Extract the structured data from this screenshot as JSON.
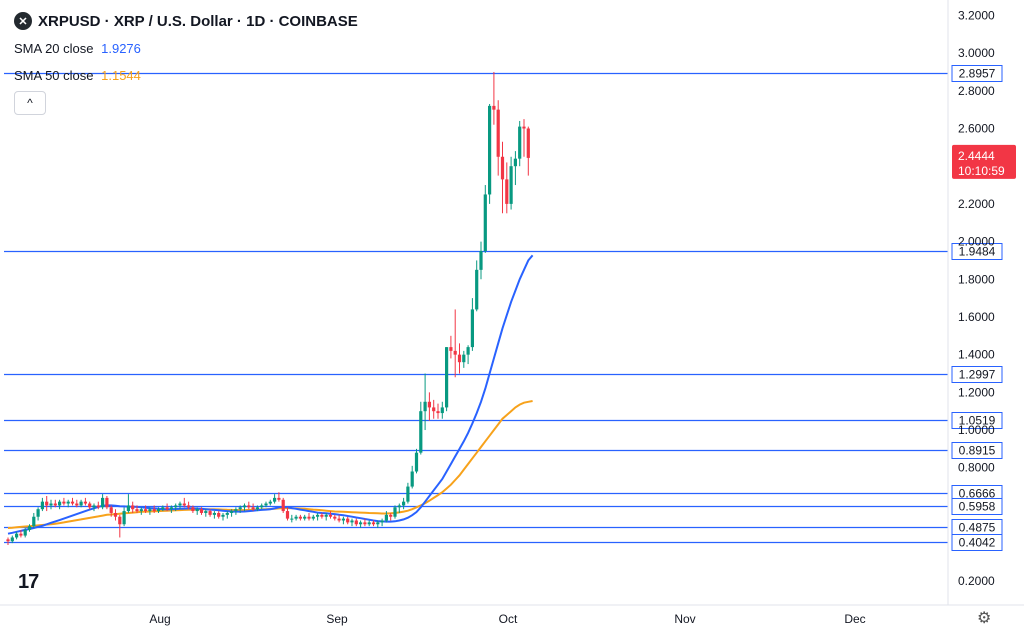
{
  "header": {
    "symbol_title": "XRPUSD · XRP / U.S. Dollar · 1D · COINBASE",
    "logo_glyph": "✕",
    "indicators": [
      {
        "label": "SMA 20 close",
        "value": "1.9276",
        "color": "#2962ff"
      },
      {
        "label": "SMA 50 close",
        "value": "1.1544",
        "color": "#f7a21b"
      }
    ],
    "collapse_glyph": "^"
  },
  "branding": {
    "logo_text": "17",
    "settings_icon": "gear-icon"
  },
  "colors": {
    "up": "#089981",
    "down": "#f23645",
    "sma20": "#2962ff",
    "sma50": "#f7a21b",
    "level_line": "#2962ff",
    "grid": "#e0e3eb",
    "text": "#131722"
  },
  "chart_data": {
    "type": "candlestick",
    "title": "XRPUSD · XRP / U.S. Dollar · 1D · COINBASE",
    "ylim": [
      0.13,
      3.25
    ],
    "y_ticks": [
      "3.2000",
      "3.0000",
      "2.8000",
      "2.6000",
      "2.4000",
      "2.2000",
      "2.0000",
      "1.8000",
      "1.6000",
      "1.4000",
      "1.2000",
      "1.0000",
      "0.8000",
      "0.2000"
    ],
    "x_labels": [
      "Aug",
      "Sep",
      "Oct",
      "Nov",
      "Dec"
    ],
    "horizontal_levels": [
      "2.8957",
      "1.9484",
      "1.2997",
      "1.0519",
      "0.8915",
      "0.6666",
      "0.5958",
      "0.4875",
      "0.4042"
    ],
    "last_price": {
      "value": "2.4444",
      "countdown": "10:10:59"
    },
    "series": [
      {
        "name": "SMA 20 close",
        "legend_value": "1.9276"
      },
      {
        "name": "SMA 50 close",
        "legend_value": "1.1544"
      }
    ],
    "candles": [
      [
        0.42,
        0.43,
        0.39,
        0.41
      ],
      [
        0.41,
        0.44,
        0.4,
        0.43
      ],
      [
        0.43,
        0.46,
        0.42,
        0.45
      ],
      [
        0.45,
        0.47,
        0.43,
        0.44
      ],
      [
        0.44,
        0.48,
        0.43,
        0.47
      ],
      [
        0.47,
        0.5,
        0.46,
        0.49
      ],
      [
        0.49,
        0.56,
        0.48,
        0.54
      ],
      [
        0.54,
        0.59,
        0.52,
        0.58
      ],
      [
        0.58,
        0.64,
        0.57,
        0.62
      ],
      [
        0.62,
        0.65,
        0.57,
        0.6
      ],
      [
        0.6,
        0.63,
        0.58,
        0.61
      ],
      [
        0.61,
        0.63,
        0.59,
        0.6
      ],
      [
        0.6,
        0.63,
        0.58,
        0.62
      ],
      [
        0.62,
        0.64,
        0.6,
        0.61
      ],
      [
        0.61,
        0.63,
        0.59,
        0.62
      ],
      [
        0.62,
        0.64,
        0.6,
        0.61
      ],
      [
        0.61,
        0.63,
        0.59,
        0.6
      ],
      [
        0.6,
        0.63,
        0.59,
        0.62
      ],
      [
        0.62,
        0.64,
        0.6,
        0.61
      ],
      [
        0.61,
        0.62,
        0.58,
        0.59
      ],
      [
        0.59,
        0.61,
        0.57,
        0.6
      ],
      [
        0.6,
        0.62,
        0.58,
        0.59
      ],
      [
        0.59,
        0.66,
        0.58,
        0.64
      ],
      [
        0.64,
        0.65,
        0.58,
        0.59
      ],
      [
        0.59,
        0.6,
        0.54,
        0.56
      ],
      [
        0.56,
        0.58,
        0.52,
        0.54
      ],
      [
        0.54,
        0.55,
        0.43,
        0.5
      ],
      [
        0.5,
        0.59,
        0.49,
        0.57
      ],
      [
        0.57,
        0.66,
        0.56,
        0.6
      ],
      [
        0.6,
        0.62,
        0.56,
        0.58
      ],
      [
        0.58,
        0.6,
        0.56,
        0.57
      ],
      [
        0.57,
        0.59,
        0.55,
        0.58
      ],
      [
        0.58,
        0.6,
        0.56,
        0.57
      ],
      [
        0.57,
        0.59,
        0.55,
        0.58
      ],
      [
        0.58,
        0.6,
        0.56,
        0.57
      ],
      [
        0.57,
        0.59,
        0.56,
        0.58
      ],
      [
        0.58,
        0.6,
        0.57,
        0.59
      ],
      [
        0.59,
        0.61,
        0.57,
        0.58
      ],
      [
        0.58,
        0.6,
        0.56,
        0.59
      ],
      [
        0.59,
        0.61,
        0.57,
        0.6
      ],
      [
        0.6,
        0.62,
        0.58,
        0.61
      ],
      [
        0.61,
        0.64,
        0.59,
        0.6
      ],
      [
        0.6,
        0.62,
        0.58,
        0.59
      ],
      [
        0.59,
        0.6,
        0.56,
        0.57
      ],
      [
        0.57,
        0.59,
        0.55,
        0.58
      ],
      [
        0.58,
        0.59,
        0.55,
        0.56
      ],
      [
        0.56,
        0.58,
        0.54,
        0.57
      ],
      [
        0.57,
        0.58,
        0.54,
        0.55
      ],
      [
        0.55,
        0.57,
        0.53,
        0.56
      ],
      [
        0.56,
        0.57,
        0.53,
        0.54
      ],
      [
        0.54,
        0.56,
        0.52,
        0.55
      ],
      [
        0.55,
        0.57,
        0.53,
        0.56
      ],
      [
        0.56,
        0.58,
        0.54,
        0.57
      ],
      [
        0.57,
        0.59,
        0.55,
        0.58
      ],
      [
        0.58,
        0.6,
        0.56,
        0.59
      ],
      [
        0.59,
        0.61,
        0.57,
        0.6
      ],
      [
        0.6,
        0.62,
        0.58,
        0.59
      ],
      [
        0.59,
        0.61,
        0.57,
        0.58
      ],
      [
        0.58,
        0.6,
        0.57,
        0.59
      ],
      [
        0.59,
        0.61,
        0.58,
        0.6
      ],
      [
        0.6,
        0.62,
        0.59,
        0.61
      ],
      [
        0.61,
        0.63,
        0.6,
        0.62
      ],
      [
        0.62,
        0.66,
        0.61,
        0.64
      ],
      [
        0.64,
        0.67,
        0.62,
        0.63
      ],
      [
        0.63,
        0.64,
        0.56,
        0.57
      ],
      [
        0.57,
        0.59,
        0.52,
        0.53
      ],
      [
        0.53,
        0.55,
        0.51,
        0.53
      ],
      [
        0.53,
        0.55,
        0.52,
        0.54
      ],
      [
        0.54,
        0.55,
        0.52,
        0.53
      ],
      [
        0.53,
        0.55,
        0.52,
        0.54
      ],
      [
        0.54,
        0.56,
        0.52,
        0.53
      ],
      [
        0.53,
        0.55,
        0.52,
        0.54
      ],
      [
        0.54,
        0.56,
        0.52,
        0.55
      ],
      [
        0.55,
        0.56,
        0.53,
        0.54
      ],
      [
        0.54,
        0.56,
        0.52,
        0.55
      ],
      [
        0.55,
        0.57,
        0.53,
        0.54
      ],
      [
        0.54,
        0.55,
        0.52,
        0.53
      ],
      [
        0.53,
        0.55,
        0.51,
        0.52
      ],
      [
        0.52,
        0.54,
        0.5,
        0.53
      ],
      [
        0.53,
        0.54,
        0.5,
        0.51
      ],
      [
        0.51,
        0.53,
        0.49,
        0.52
      ],
      [
        0.52,
        0.53,
        0.49,
        0.5
      ],
      [
        0.5,
        0.52,
        0.48,
        0.51
      ],
      [
        0.51,
        0.53,
        0.49,
        0.5
      ],
      [
        0.5,
        0.52,
        0.49,
        0.51
      ],
      [
        0.51,
        0.52,
        0.49,
        0.5
      ],
      [
        0.5,
        0.52,
        0.48,
        0.51
      ],
      [
        0.51,
        0.53,
        0.49,
        0.52
      ],
      [
        0.52,
        0.57,
        0.51,
        0.55
      ],
      [
        0.55,
        0.56,
        0.52,
        0.54
      ],
      [
        0.54,
        0.6,
        0.53,
        0.59
      ],
      [
        0.59,
        0.61,
        0.56,
        0.6
      ],
      [
        0.6,
        0.64,
        0.58,
        0.62
      ],
      [
        0.62,
        0.72,
        0.61,
        0.7
      ],
      [
        0.7,
        0.81,
        0.69,
        0.78
      ],
      [
        0.78,
        0.9,
        0.77,
        0.88
      ],
      [
        0.88,
        1.15,
        0.87,
        1.1
      ],
      [
        1.1,
        1.3,
        1.0,
        1.15
      ],
      [
        1.15,
        1.2,
        1.05,
        1.12
      ],
      [
        1.12,
        1.16,
        1.06,
        1.1
      ],
      [
        1.1,
        1.14,
        1.06,
        1.09
      ],
      [
        1.09,
        1.15,
        1.06,
        1.12
      ],
      [
        1.12,
        1.44,
        1.1,
        1.44
      ],
      [
        1.44,
        1.5,
        1.38,
        1.42
      ],
      [
        1.42,
        1.64,
        1.28,
        1.4
      ],
      [
        1.4,
        1.46,
        1.3,
        1.36
      ],
      [
        1.36,
        1.42,
        1.33,
        1.4
      ],
      [
        1.4,
        1.45,
        1.35,
        1.44
      ],
      [
        1.44,
        1.7,
        1.42,
        1.64
      ],
      [
        1.64,
        1.9,
        1.63,
        1.85
      ],
      [
        1.85,
        2.0,
        1.8,
        1.95
      ],
      [
        1.95,
        2.3,
        1.94,
        2.25
      ],
      [
        2.25,
        2.73,
        2.2,
        2.72
      ],
      [
        2.72,
        2.9,
        2.62,
        2.7
      ],
      [
        2.7,
        2.75,
        2.35,
        2.45
      ],
      [
        2.45,
        2.53,
        2.15,
        2.33
      ],
      [
        2.33,
        2.42,
        2.15,
        2.2
      ],
      [
        2.2,
        2.45,
        2.17,
        2.4
      ],
      [
        2.4,
        2.48,
        2.3,
        2.44
      ],
      [
        2.44,
        2.64,
        2.4,
        2.61
      ],
      [
        2.61,
        2.65,
        2.45,
        2.6
      ],
      [
        2.6,
        2.61,
        2.35,
        2.444
      ]
    ],
    "sma20": [
      0.45,
      0.455,
      0.46,
      0.465,
      0.47,
      0.475,
      0.48,
      0.486,
      0.492,
      0.5,
      0.508,
      0.515,
      0.522,
      0.53,
      0.538,
      0.546,
      0.554,
      0.562,
      0.57,
      0.578,
      0.585,
      0.592,
      0.598,
      0.6,
      0.6,
      0.598,
      0.596,
      0.595,
      0.594,
      0.593,
      0.592,
      0.59,
      0.588,
      0.586,
      0.584,
      0.582,
      0.58,
      0.58,
      0.58,
      0.581,
      0.582,
      0.583,
      0.584,
      0.584,
      0.583,
      0.582,
      0.58,
      0.578,
      0.576,
      0.574,
      0.572,
      0.57,
      0.568,
      0.567,
      0.567,
      0.568,
      0.57,
      0.572,
      0.574,
      0.576,
      0.578,
      0.58,
      0.584,
      0.59,
      0.592,
      0.59,
      0.586,
      0.582,
      0.578,
      0.574,
      0.57,
      0.566,
      0.562,
      0.56,
      0.558,
      0.556,
      0.554,
      0.551,
      0.548,
      0.544,
      0.54,
      0.536,
      0.532,
      0.528,
      0.524,
      0.52,
      0.517,
      0.515,
      0.514,
      0.514,
      0.516,
      0.52,
      0.526,
      0.535,
      0.548,
      0.565,
      0.59,
      0.62,
      0.65,
      0.68,
      0.71,
      0.74,
      0.78,
      0.82,
      0.86,
      0.9,
      0.94,
      0.985,
      1.035,
      1.09,
      1.15,
      1.22,
      1.3,
      1.38,
      1.46,
      1.54,
      1.61,
      1.68,
      1.74,
      1.8,
      1.85,
      1.9,
      1.927
    ],
    "sma50": [
      0.48,
      0.482,
      0.484,
      0.486,
      0.488,
      0.49,
      0.492,
      0.494,
      0.496,
      0.498,
      0.5,
      0.503,
      0.506,
      0.51,
      0.514,
      0.518,
      0.522,
      0.526,
      0.53,
      0.534,
      0.538,
      0.542,
      0.546,
      0.55,
      0.552,
      0.554,
      0.556,
      0.558,
      0.56,
      0.562,
      0.564,
      0.566,
      0.567,
      0.568,
      0.569,
      0.57,
      0.571,
      0.572,
      0.573,
      0.574,
      0.575,
      0.576,
      0.577,
      0.578,
      0.579,
      0.58,
      0.58,
      0.58,
      0.58,
      0.579,
      0.578,
      0.577,
      0.576,
      0.575,
      0.575,
      0.575,
      0.576,
      0.577,
      0.578,
      0.579,
      0.58,
      0.581,
      0.582,
      0.584,
      0.586,
      0.586,
      0.585,
      0.584,
      0.583,
      0.582,
      0.58,
      0.578,
      0.576,
      0.574,
      0.572,
      0.57,
      0.568,
      0.567,
      0.566,
      0.565,
      0.564,
      0.563,
      0.562,
      0.561,
      0.56,
      0.559,
      0.558,
      0.557,
      0.557,
      0.558,
      0.56,
      0.563,
      0.567,
      0.572,
      0.58,
      0.59,
      0.6,
      0.612,
      0.625,
      0.64,
      0.655,
      0.67,
      0.69,
      0.71,
      0.735,
      0.76,
      0.79,
      0.82,
      0.85,
      0.88,
      0.91,
      0.94,
      0.97,
      1.0,
      1.03,
      1.06,
      1.08,
      1.1,
      1.12,
      1.135,
      1.145,
      1.15,
      1.154
    ]
  }
}
